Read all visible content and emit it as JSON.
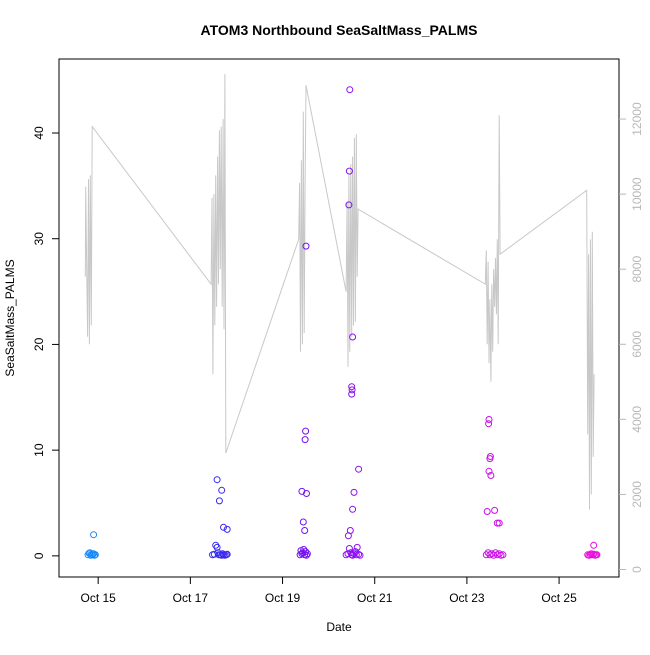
{
  "chart_data": {
    "type": "scatter",
    "title": "ATOM3 Northbound SeaSaltMass_PALMS",
    "xlabel": "Date",
    "ylabel": "SeaSaltMass_PALMS",
    "x_ticks": [
      "Oct 15",
      "Oct 17",
      "Oct 19",
      "Oct 21",
      "Oct 23",
      "Oct 25"
    ],
    "x_tick_days": [
      15,
      17,
      19,
      21,
      23,
      25
    ],
    "xlim_days": [
      14.15,
      26.3
    ],
    "ylim": [
      -2,
      47
    ],
    "y_ticks": [
      0,
      10,
      20,
      30,
      40
    ],
    "y2_ticks": [
      0,
      2000,
      4000,
      6000,
      8000,
      10000,
      12000
    ],
    "y2lim": [
      -200,
      13600
    ],
    "grid": false,
    "color_gradient": [
      "#19aaff",
      "#0f3cf0",
      "#6a12f0",
      "#a010f0",
      "#d010e6",
      "#f10ad8"
    ],
    "colors": {
      "altitude_line": "#c8c8c8",
      "axis": "#000000",
      "right_axis": "#b8b8b8"
    },
    "series": [
      {
        "type": "scatter",
        "points": [
          [
            14.78,
            0.1
          ],
          [
            14.8,
            0.25
          ],
          [
            14.82,
            0.3
          ],
          [
            14.84,
            0.05
          ],
          [
            14.86,
            0.15
          ],
          [
            14.88,
            0.1
          ],
          [
            14.9,
            0.2
          ],
          [
            14.92,
            0.05
          ],
          [
            14.94,
            0.1
          ],
          [
            14.9,
            2.0
          ],
          [
            17.48,
            0.1
          ],
          [
            17.52,
            0.15
          ],
          [
            17.55,
            1.0
          ],
          [
            17.58,
            0.8
          ],
          [
            17.6,
            0.3
          ],
          [
            17.62,
            0.1
          ],
          [
            17.65,
            0.1
          ],
          [
            17.68,
            0.05
          ],
          [
            17.7,
            0.2
          ],
          [
            17.72,
            0.1
          ],
          [
            17.75,
            0.05
          ],
          [
            17.78,
            0.1
          ],
          [
            17.8,
            0.15
          ],
          [
            17.58,
            7.2
          ],
          [
            17.63,
            5.2
          ],
          [
            17.68,
            6.2
          ],
          [
            17.72,
            2.7
          ],
          [
            17.8,
            2.5
          ],
          [
            19.38,
            0.1
          ],
          [
            19.4,
            0.5
          ],
          [
            19.42,
            0.2
          ],
          [
            19.44,
            0.3
          ],
          [
            19.46,
            0.6
          ],
          [
            19.48,
            0.1
          ],
          [
            19.5,
            0.4
          ],
          [
            19.52,
            0.05
          ],
          [
            19.54,
            0.2
          ],
          [
            19.42,
            6.1
          ],
          [
            19.45,
            3.2
          ],
          [
            19.48,
            2.4
          ],
          [
            19.5,
            11.8
          ],
          [
            19.49,
            11.0
          ],
          [
            19.52,
            5.9
          ],
          [
            19.51,
            29.3
          ],
          [
            20.38,
            0.1
          ],
          [
            20.42,
            0.2
          ],
          [
            20.45,
            0.7
          ],
          [
            20.48,
            0.3
          ],
          [
            20.5,
            0.1
          ],
          [
            20.52,
            0.05
          ],
          [
            20.55,
            0.2
          ],
          [
            20.58,
            0.4
          ],
          [
            20.6,
            0.1
          ],
          [
            20.62,
            0.8
          ],
          [
            20.65,
            0.15
          ],
          [
            20.68,
            0.05
          ],
          [
            20.43,
            1.9
          ],
          [
            20.47,
            2.4
          ],
          [
            20.52,
            4.4
          ],
          [
            20.55,
            6.0
          ],
          [
            20.65,
            8.2
          ],
          [
            20.5,
            15.3
          ],
          [
            20.5,
            16.0
          ],
          [
            20.51,
            15.7
          ],
          [
            20.52,
            20.7
          ],
          [
            20.44,
            33.2
          ],
          [
            20.45,
            36.4
          ],
          [
            20.46,
            44.1
          ],
          [
            23.42,
            0.1
          ],
          [
            23.46,
            0.3
          ],
          [
            23.5,
            0.1
          ],
          [
            23.54,
            0.2
          ],
          [
            23.58,
            0.05
          ],
          [
            23.62,
            0.3
          ],
          [
            23.66,
            0.1
          ],
          [
            23.7,
            0.2
          ],
          [
            23.74,
            0.05
          ],
          [
            23.78,
            0.1
          ],
          [
            23.44,
            4.2
          ],
          [
            23.48,
            8.0
          ],
          [
            23.52,
            7.6
          ],
          [
            23.5,
            9.2
          ],
          [
            23.51,
            9.4
          ],
          [
            23.47,
            12.5
          ],
          [
            23.48,
            12.9
          ],
          [
            23.6,
            4.3
          ],
          [
            23.66,
            3.1
          ],
          [
            23.7,
            3.1
          ],
          [
            25.62,
            0.1
          ],
          [
            25.65,
            0.05
          ],
          [
            25.68,
            0.1
          ],
          [
            25.7,
            0.2
          ],
          [
            25.72,
            0.1
          ],
          [
            25.75,
            0.15
          ],
          [
            25.78,
            0.05
          ],
          [
            25.8,
            0.1
          ],
          [
            25.82,
            0.1
          ],
          [
            25.75,
            1.0
          ]
        ]
      },
      {
        "type": "line",
        "axis": "right",
        "points": [
          [
            14.72,
            7800
          ],
          [
            14.73,
            10200
          ],
          [
            14.75,
            8000
          ],
          [
            14.77,
            6200
          ],
          [
            14.79,
            10400
          ],
          [
            14.81,
            6000
          ],
          [
            14.83,
            10500
          ],
          [
            14.85,
            6500
          ],
          [
            14.87,
            11800
          ],
          [
            17.45,
            7600
          ],
          [
            17.47,
            9900
          ],
          [
            17.49,
            5200
          ],
          [
            17.51,
            10000
          ],
          [
            17.53,
            6500
          ],
          [
            17.55,
            10500
          ],
          [
            17.57,
            7000
          ],
          [
            17.59,
            11000
          ],
          [
            17.61,
            7600
          ],
          [
            17.63,
            11700
          ],
          [
            17.65,
            8000
          ],
          [
            17.67,
            11800
          ],
          [
            17.69,
            7000
          ],
          [
            17.71,
            12000
          ],
          [
            17.73,
            6400
          ],
          [
            17.75,
            13200
          ],
          [
            17.77,
            3100
          ],
          [
            19.35,
            8800
          ],
          [
            19.37,
            10300
          ],
          [
            19.39,
            5800
          ],
          [
            19.41,
            10900
          ],
          [
            19.43,
            6000
          ],
          [
            19.45,
            12200
          ],
          [
            19.47,
            6300
          ],
          [
            19.49,
            10300
          ],
          [
            19.51,
            12900
          ],
          [
            20.38,
            7400
          ],
          [
            20.4,
            9800
          ],
          [
            20.42,
            5400
          ],
          [
            20.44,
            10500
          ],
          [
            20.46,
            5800
          ],
          [
            20.48,
            10800
          ],
          [
            20.5,
            6200
          ],
          [
            20.52,
            11000
          ],
          [
            20.54,
            6500
          ],
          [
            20.56,
            11500
          ],
          [
            20.58,
            6600
          ],
          [
            20.6,
            11600
          ],
          [
            20.62,
            7800
          ],
          [
            20.64,
            9600
          ],
          [
            23.4,
            7600
          ],
          [
            23.42,
            8500
          ],
          [
            23.44,
            6000
          ],
          [
            23.46,
            8200
          ],
          [
            23.48,
            5500
          ],
          [
            23.5,
            7200
          ],
          [
            23.52,
            5000
          ],
          [
            23.54,
            7600
          ],
          [
            23.56,
            5800
          ],
          [
            23.58,
            8000
          ],
          [
            23.6,
            7000
          ],
          [
            23.62,
            8300
          ],
          [
            23.64,
            6800
          ],
          [
            23.66,
            8800
          ],
          [
            23.68,
            6000
          ],
          [
            23.7,
            12100
          ],
          [
            23.72,
            8400
          ],
          [
            25.6,
            10100
          ],
          [
            25.62,
            3600
          ],
          [
            25.64,
            8400
          ],
          [
            25.66,
            1600
          ],
          [
            25.68,
            8800
          ],
          [
            25.7,
            2000
          ],
          [
            25.72,
            9000
          ],
          [
            25.74,
            3000
          ],
          [
            25.76,
            5200
          ]
        ]
      }
    ]
  }
}
